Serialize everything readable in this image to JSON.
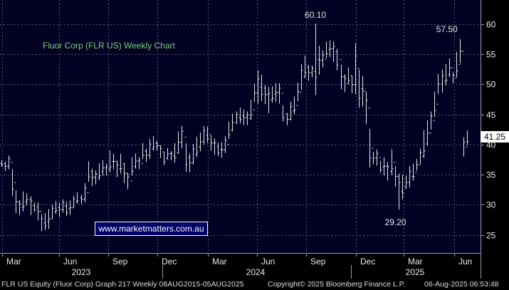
{
  "chart_data": {
    "type": "ohlc",
    "title": "Fluor Corp (FLR US) Weekly Chart",
    "ylim": [
      22,
      64
    ],
    "y_ticks": [
      25,
      30,
      35,
      40,
      45,
      50,
      55,
      60
    ],
    "x_month_labels": [
      "Mar",
      "Jun",
      "Sep",
      "Dec",
      "Mar",
      "Jun",
      "Sep",
      "Dec",
      "Mar",
      "Jun"
    ],
    "x_year_labels": [
      "2023",
      "2024",
      "2025"
    ],
    "series": [
      {
        "values": [
          [
            37.4,
            36.3
          ],
          [
            37.2,
            35.6
          ],
          [
            38.2,
            35.9
          ],
          [
            35.9,
            31.5
          ],
          [
            32.4,
            28.6
          ],
          [
            30.8,
            28.3
          ],
          [
            32.2,
            28.9
          ],
          [
            31.9,
            29.9
          ],
          [
            31.4,
            28.3
          ],
          [
            30.4,
            28.8
          ],
          [
            30.4,
            27.4
          ],
          [
            28.4,
            25.6
          ],
          [
            28.6,
            25.8
          ],
          [
            29.3,
            26.0
          ],
          [
            30.0,
            27.7
          ],
          [
            30.6,
            28.5
          ],
          [
            30.4,
            28.0
          ],
          [
            30.9,
            28.7
          ],
          [
            30.5,
            28.1
          ],
          [
            30.7,
            28.3
          ],
          [
            31.5,
            29.5
          ],
          [
            32.1,
            30.2
          ],
          [
            31.7,
            30.1
          ],
          [
            33.6,
            30.4
          ],
          [
            37.2,
            33.8
          ],
          [
            36.0,
            33.1
          ],
          [
            35.7,
            33.4
          ],
          [
            36.9,
            34.1
          ],
          [
            37.4,
            34.8
          ],
          [
            36.8,
            34.9
          ],
          [
            39.0,
            35.4
          ],
          [
            38.5,
            35.9
          ],
          [
            37.3,
            34.6
          ],
          [
            38.5,
            35.2
          ],
          [
            36.9,
            33.6
          ],
          [
            35.3,
            32.6
          ],
          [
            37.9,
            34.8
          ],
          [
            38.5,
            36.0
          ],
          [
            37.9,
            35.9
          ],
          [
            40.2,
            37.6
          ],
          [
            39.3,
            37.1
          ],
          [
            40.9,
            37.6
          ],
          [
            41.4,
            39.0
          ],
          [
            40.6,
            39.0
          ],
          [
            39.8,
            37.8
          ],
          [
            38.8,
            36.6
          ],
          [
            39.4,
            37.5
          ],
          [
            38.9,
            37.4
          ],
          [
            40.2,
            37.0
          ],
          [
            42.2,
            38.5
          ],
          [
            43.1,
            39.4
          ],
          [
            40.2,
            35.5
          ],
          [
            38.5,
            35.4
          ],
          [
            40.1,
            36.7
          ],
          [
            41.3,
            37.9
          ],
          [
            42.0,
            38.9
          ],
          [
            43.1,
            40.0
          ],
          [
            43.0,
            40.3
          ],
          [
            41.5,
            39.0
          ],
          [
            41.0,
            38.3
          ],
          [
            40.3,
            38.1
          ],
          [
            40.4,
            37.8
          ],
          [
            41.4,
            38.6
          ],
          [
            43.8,
            40.9
          ],
          [
            45.1,
            42.2
          ],
          [
            45.5,
            43.4
          ],
          [
            46.1,
            43.5
          ],
          [
            45.8,
            43.2
          ],
          [
            45.5,
            43.2
          ],
          [
            47.4,
            44.1
          ],
          [
            50.1,
            47.1
          ],
          [
            52.3,
            46.8
          ],
          [
            51.6,
            47.2
          ],
          [
            49.9,
            46.7
          ],
          [
            49.6,
            45.2
          ],
          [
            49.7,
            47.0
          ],
          [
            50.2,
            47.1
          ],
          [
            50.2,
            46.8
          ],
          [
            46.5,
            43.8
          ],
          [
            45.2,
            43.2
          ],
          [
            47.1,
            44.0
          ],
          [
            48.0,
            45.0
          ],
          [
            50.3,
            47.2
          ],
          [
            53.4,
            49.1
          ],
          [
            54.8,
            51.0
          ],
          [
            53.2,
            50.6
          ],
          [
            53.1,
            51.2
          ],
          [
            60.1,
            48.2
          ],
          [
            56.4,
            51.6
          ],
          [
            55.6,
            52.8
          ],
          [
            57.1,
            54.4
          ],
          [
            57.3,
            54.5
          ],
          [
            57.1,
            53.7
          ],
          [
            55.9,
            52.3
          ],
          [
            53.3,
            49.2
          ],
          [
            51.7,
            48.7
          ],
          [
            52.8,
            50.0
          ],
          [
            51.4,
            48.5
          ],
          [
            56.8,
            48.4
          ],
          [
            52.4,
            46.1
          ],
          [
            51.4,
            46.3
          ],
          [
            48.7,
            43.4
          ],
          [
            42.6,
            36.2
          ],
          [
            38.8,
            36.7
          ],
          [
            39.2,
            36.5
          ],
          [
            37.3,
            35.3
          ],
          [
            37.9,
            34.9
          ],
          [
            37.1,
            34.0
          ],
          [
            39.2,
            34.9
          ],
          [
            36.4,
            33.0
          ],
          [
            35.2,
            29.2
          ],
          [
            35.0,
            30.9
          ],
          [
            34.8,
            32.6
          ],
          [
            36.4,
            32.9
          ],
          [
            36.8,
            34.0
          ],
          [
            37.6,
            35.7
          ],
          [
            39.3,
            36.8
          ],
          [
            42.4,
            37.8
          ],
          [
            44.0,
            39.8
          ],
          [
            45.5,
            42.5
          ],
          [
            48.8,
            44.6
          ],
          [
            51.7,
            48.4
          ],
          [
            52.4,
            48.6
          ],
          [
            53.4,
            49.8
          ],
          [
            54.3,
            51.2
          ],
          [
            52.0,
            50.2
          ],
          [
            55.4,
            51.2
          ],
          [
            57.5,
            53.5
          ],
          [
            41.2,
            38.0
          ],
          [
            42.3,
            39.9
          ]
        ]
      }
    ],
    "annotations": [
      {
        "text": "60.10",
        "x": 87,
        "y": 60.1
      },
      {
        "text": "57.50",
        "x": 125,
        "y": 57.5
      },
      {
        "text": "29.20",
        "x": 108,
        "y": 29.2
      }
    ],
    "last_price": "41.25",
    "watermark": "www.marketmatters.com.au",
    "footer": {
      "left": "FLR US Equity (Fluor Corp) Graph 217  Weekly 08AUG2015-05AUG2025",
      "mid": "Copyright© 2025 Bloomberg Finance L.P.",
      "right": "06-Aug-2025 06:53:48"
    }
  }
}
